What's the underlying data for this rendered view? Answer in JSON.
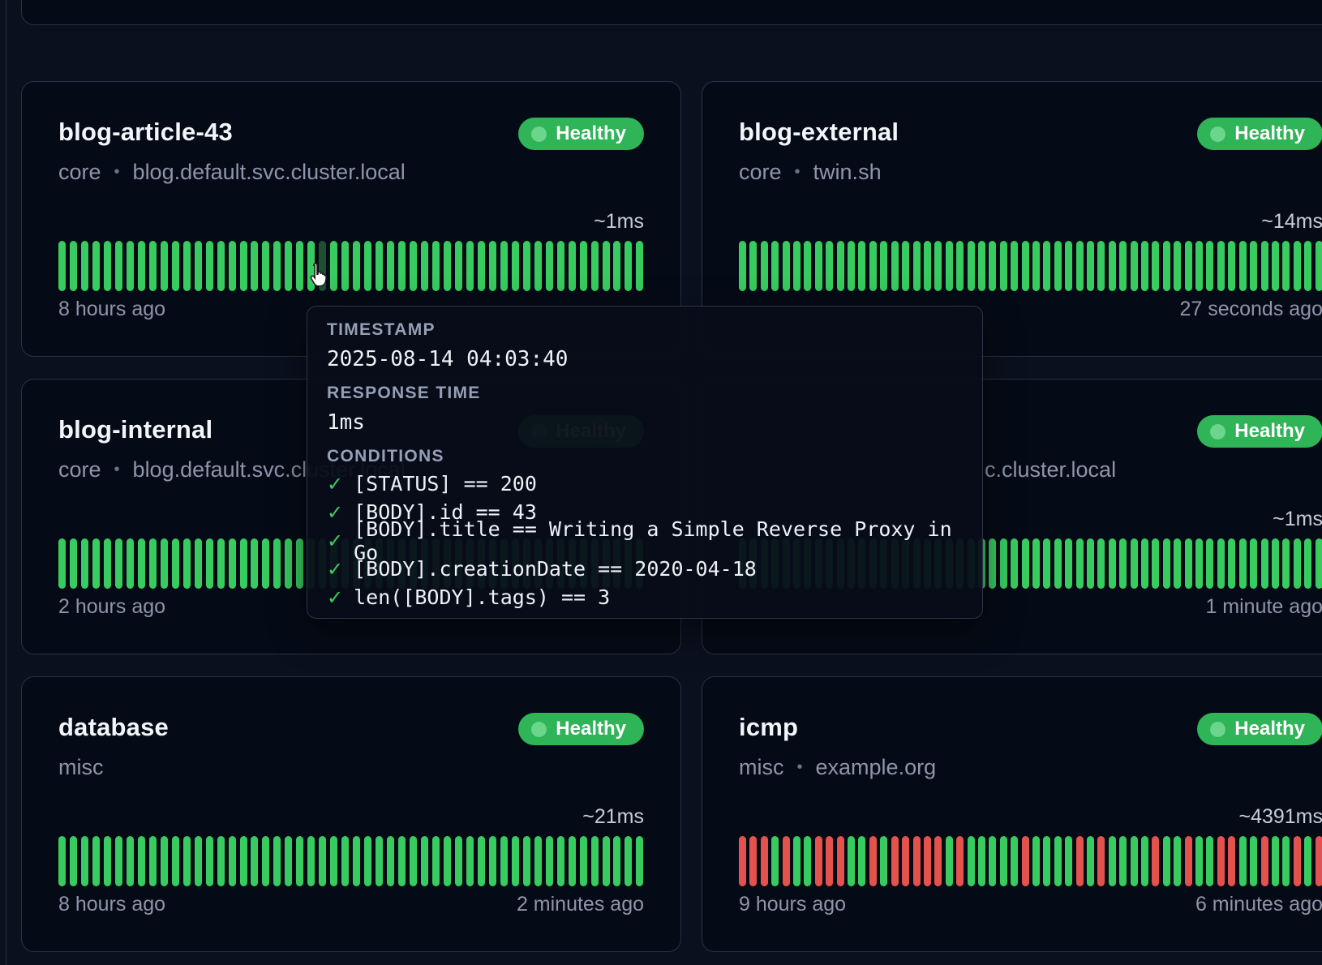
{
  "colors": {
    "page_bg": "#0a101e",
    "card_bg": "#050b16",
    "card_border": "#273246",
    "bar_up": "#38cb5f",
    "bar_down": "#e4524e",
    "bar_hover": "#1d4f30",
    "badge_bg": "#2fb457",
    "badge_dot": "#74da94",
    "title_text": "#f2f5fa",
    "muted_text": "#8d95a9",
    "tooltip_label": "#96a0b5",
    "check_green": "#3ecb63"
  },
  "separator": "•",
  "cards": [
    {
      "title": "blog-article-43",
      "group": "core",
      "host": "blog.default.svc.cluster.local",
      "status": "Healthy",
      "response_time": "~1ms",
      "footer_left": "8 hours ago",
      "footer_right": "",
      "col": "left",
      "row": 0,
      "bars": {
        "count": 52,
        "hover_index": 23
      }
    },
    {
      "title": "blog-external",
      "group": "core",
      "host": "twin.sh",
      "status": "Healthy",
      "response_time": "~14ms",
      "footer_left": "",
      "footer_right": "27 seconds ago",
      "col": "right",
      "row": 0,
      "bars": {
        "count": 54
      }
    },
    {
      "title": "blog-internal",
      "group": "core",
      "host": "blog.default.svc.cluster.local",
      "status": "Healthy",
      "response_time": "",
      "footer_left": "2 hours ago",
      "footer_right": "",
      "col": "left",
      "row": 1,
      "bars": {
        "count": 52
      }
    },
    {
      "title": "",
      "group": "",
      "host": "c.cluster.local",
      "host_indent": 303,
      "status": "Healthy",
      "response_time": "~1ms",
      "footer_left": "",
      "footer_right": "1 minute ago",
      "col": "right",
      "row": 1,
      "bars": {
        "count": 54
      }
    },
    {
      "title": "database",
      "group": "misc",
      "host": "",
      "status": "Healthy",
      "response_time": "~21ms",
      "footer_left": "8 hours ago",
      "footer_right": "2 minutes ago",
      "col": "left",
      "row": 2,
      "bars": {
        "count": 52
      }
    },
    {
      "title": "icmp",
      "group": "misc",
      "host": "example.org",
      "status": "Healthy",
      "response_time": "~4391ms",
      "footer_left": "9 hours ago",
      "footer_right": "6 minutes ago",
      "col": "right",
      "row": 2,
      "bars": {
        "count": 54,
        "statuses": [
          0,
          0,
          0,
          1,
          0,
          1,
          1,
          0,
          0,
          0,
          1,
          1,
          0,
          1,
          0,
          0,
          0,
          0,
          0,
          1,
          0,
          1,
          1,
          1,
          1,
          1,
          0,
          1,
          1,
          1,
          1,
          0,
          1,
          0,
          1,
          1,
          1,
          1,
          0,
          1,
          1,
          0,
          1,
          1,
          0,
          0,
          1,
          1,
          0,
          1,
          1,
          0,
          1,
          0
        ]
      }
    }
  ],
  "tooltip": {
    "timestamp_label": "TIMESTAMP",
    "timestamp_value": "2025-08-14 04:03:40",
    "response_time_label": "RESPONSE TIME",
    "response_time_value": "1ms",
    "conditions_label": "CONDITIONS",
    "check_mark": "✓",
    "conditions": [
      "[STATUS] == 200",
      "[BODY].id == 43",
      "[BODY].title == Writing a Simple Reverse Proxy in Go",
      "[BODY].creationDate == 2020-04-18",
      "len([BODY].tags) == 3"
    ]
  }
}
